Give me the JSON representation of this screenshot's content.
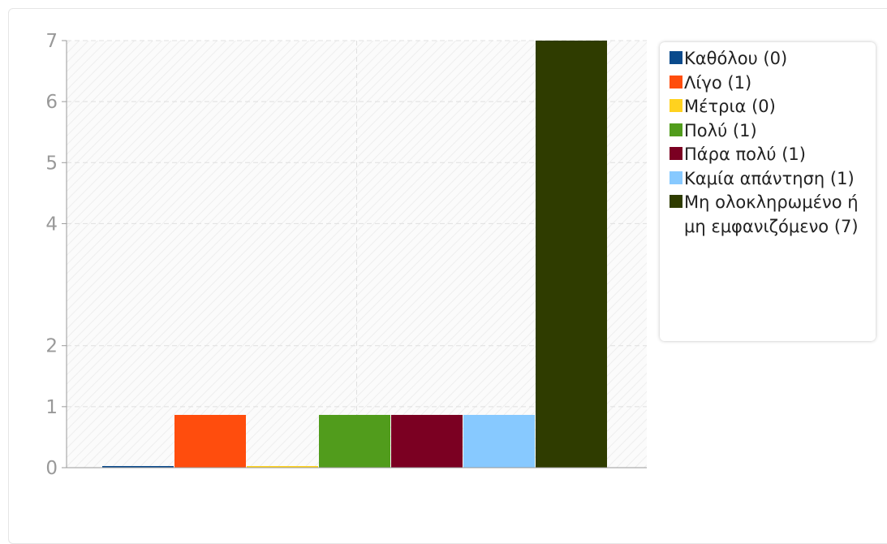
{
  "chart_data": {
    "type": "bar",
    "categories": [
      "Καθόλου (0)",
      "Λίγο (1)",
      "Μέτρια (0)",
      "Πολύ (1)",
      "Πάρα πολύ (1)",
      "Καμία απάντηση (1)",
      "Μη ολοκληρωμένο ή μη εμφανιζόμενο (7)"
    ],
    "values": [
      0,
      1,
      0,
      1,
      1,
      1,
      7
    ],
    "colors": [
      "#0a4a8c",
      "#ff4d0d",
      "#ffd21f",
      "#519c1c",
      "#7b0022",
      "#87c9ff",
      "#2f3c00"
    ],
    "yticks": [
      0,
      1,
      2,
      4,
      5,
      6,
      7
    ],
    "ylim": [
      0,
      7
    ],
    "grid": true,
    "legend": "right"
  }
}
